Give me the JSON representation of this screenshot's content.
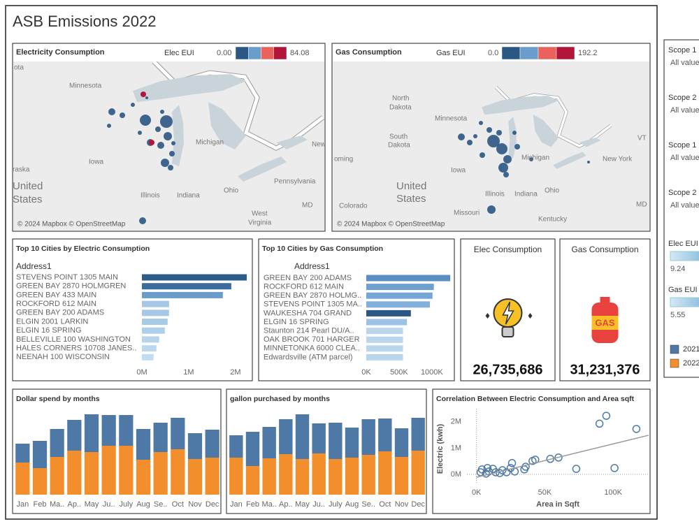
{
  "title": "ASB Emissions 2022",
  "maps": [
    {
      "title": "Electricity Consumption",
      "legend_title": "Elec EUI",
      "legend_min": "0.00",
      "legend_max": "84.08",
      "legend_colors": [
        "#2a5783",
        "#6a9ccc",
        "#e9635c",
        "#b3153a"
      ],
      "labels": [
        "ota",
        "Minnesota",
        "Michigan",
        "Iowa",
        "raska",
        "United",
        "States",
        "Illinois",
        "Indiana",
        "Ohio",
        "Pennsylvania",
        "MD",
        "West",
        "Virginia",
        "New"
      ],
      "attribution": "© 2024 Mapbox © OpenStreetMap"
    },
    {
      "title": "Gas Consumption",
      "legend_title": "Gas EUI",
      "legend_min": "0.0",
      "legend_max": "192.2",
      "legend_colors": [
        "#2a5783",
        "#6a9ccc",
        "#e9635c",
        "#b3153a"
      ],
      "labels": [
        "North",
        "Dakota",
        "Minnesota",
        "South",
        "Dakota",
        "Michigan",
        "New York",
        "Iowa",
        "oming",
        "United",
        "States",
        "Illinois",
        "Indiana",
        "Ohio",
        "Colorado",
        "MD",
        "Missouri",
        "Kentucky",
        "VT"
      ],
      "attribution": "© 2024 Mapbox © OpenStreetMap"
    }
  ],
  "kpis": [
    {
      "title": "Elec Consumption",
      "value": "26,735,686"
    },
    {
      "title": "Gas Consumption",
      "value": "31,231,376",
      "icon_text": "GAS"
    }
  ],
  "filters": [
    {
      "label": "Scope 1",
      "value": "All values"
    },
    {
      "label": "Scope 2",
      "value": "All values"
    },
    {
      "label": "Scope 1",
      "value": "All values"
    },
    {
      "label": "Scope 2",
      "value": "All values"
    }
  ],
  "sliders": [
    {
      "label": "Elec EUI",
      "value": "9.24"
    },
    {
      "label": "Gas EUI",
      "value": "5.55"
    }
  ],
  "chart_data": [
    {
      "type": "bar",
      "horizontal": true,
      "title": "Top 10 Cities by Electric Consumption",
      "y_label": "Address1",
      "categories": [
        "STEVENS POINT 1305 MAIN",
        "GREEN BAY 2870 HOLMGREN",
        "GREEN BAY 433 MAIN",
        "ROCKFORD 612 MAIN",
        "GREEN BAY 200 ADAMS",
        "ELGIN 2001 LARKIN",
        "ELGIN 16 SPRING",
        "BELLEVILLE 100 WASHINGTON",
        "HALES CORNERS 10708 JANES..",
        "NEENAH 100 WISCONSIN"
      ],
      "values": [
        2240000,
        1910000,
        1730000,
        580000,
        580000,
        550000,
        490000,
        370000,
        310000,
        250000
      ],
      "colors": [
        "#2c5d8a",
        "#3b6c9c",
        "#6b9bc9",
        "#a4c8e6",
        "#a4c8e6",
        "#a8cbe7",
        "#aecfe9",
        "#b6d4ec",
        "#bcd8ee",
        "#c2dcf0"
      ],
      "xlim": [
        0,
        2300000
      ],
      "xticks": [
        {
          "value": 0,
          "label": "0M"
        },
        {
          "value": 1000000,
          "label": "1M"
        },
        {
          "value": 2000000,
          "label": "2M"
        }
      ]
    },
    {
      "type": "bar",
      "horizontal": true,
      "title": "Top 10 Cities by Gas Consumption",
      "y_label": "Address1",
      "categories": [
        "GREEN BAY 200 ADAMS",
        "ROCKFORD 612 MAIN",
        "GREEN BAY 2870 HOLMG..",
        "STEVENS POINT 1305 MA..",
        "WAUKESHA 704 GRAND",
        "ELGIN 16 SPRING",
        "Staunton 214 Pearl DU/A..",
        "OAK BROOK 701 HARGER",
        "MINNETONKA 6000 CLEA..",
        "Edwardsville (ATM parcel)"
      ],
      "values": [
        1280000,
        1030000,
        1010000,
        970000,
        680000,
        620000,
        560000,
        560000,
        560000,
        560000
      ],
      "colors": [
        "#5b8fc4",
        "#6ea0d0",
        "#76a6d4",
        "#82b0da",
        "#2a5783",
        "#9cc2e4",
        "#b9d6ed",
        "#b9d6ed",
        "#b9d6ed",
        "#b9d6ed"
      ],
      "xlim": [
        0,
        1300000
      ],
      "xticks": [
        {
          "value": 0,
          "label": "0K"
        },
        {
          "value": 500000,
          "label": "500K"
        },
        {
          "value": 1000000,
          "label": "1000K"
        }
      ]
    },
    {
      "type": "bar",
      "stacked": true,
      "title": "Dollar spend by months",
      "categories": [
        "Jan",
        "Feb",
        "Ma..",
        "Ap..",
        "May",
        "Ju..",
        "July",
        "Aug",
        "Se..",
        "Oct",
        "Nov",
        "Dec"
      ],
      "series": [
        {
          "name": "2022",
          "color": "#f28e2b",
          "values": [
            46,
            38,
            54,
            63,
            61,
            70,
            70,
            50,
            61,
            65,
            51,
            53
          ]
        },
        {
          "name": "2021",
          "color": "#4e79a7",
          "values": [
            27,
            39,
            40,
            44,
            54,
            44,
            44,
            44,
            42,
            45,
            37,
            40
          ]
        }
      ]
    },
    {
      "type": "bar",
      "stacked": true,
      "title": "gallon purchased by months",
      "categories": [
        "Jan",
        "Feb",
        "Ma..",
        "Ap..",
        "May",
        "Ju..",
        "July",
        "Aug",
        "Se..",
        "Oct",
        "Nov",
        "Dec"
      ],
      "series": [
        {
          "name": "2022",
          "color": "#f28e2b",
          "values": [
            53,
            41,
            52,
            58,
            51,
            59,
            51,
            53,
            57,
            62,
            54,
            63
          ]
        },
        {
          "name": "2021",
          "color": "#4e79a7",
          "values": [
            32,
            49,
            45,
            50,
            64,
            43,
            52,
            43,
            51,
            47,
            41,
            47
          ]
        }
      ]
    },
    {
      "type": "scatter",
      "title": "Correlation Between Electric Consumption and Area sqft",
      "x_label": "Area in Sqft",
      "y_label": "Electric (kwh)",
      "color": "#4e79a7",
      "x": [
        90000,
        95000,
        117000,
        101000,
        73000,
        60000,
        54000,
        43000,
        41000,
        36000,
        26000,
        28000,
        35000,
        4000,
        9000,
        14000,
        19000,
        7000,
        12000,
        17000,
        22000,
        3000,
        8000,
        25000
      ],
      "values": [
        1930000,
        2230000,
        1730000,
        240000,
        210000,
        640000,
        590000,
        560000,
        510000,
        290000,
        430000,
        110000,
        190000,
        190000,
        110000,
        80000,
        160000,
        30000,
        210000,
        50000,
        80000,
        80000,
        240000,
        240000
      ],
      "trendline": {
        "color": "#999999",
        "x": [
          0,
          126000
        ],
        "values": [
          -110000,
          1490000
        ]
      },
      "xlim": [
        -7000,
        126000
      ],
      "ylim": [
        -560000,
        2500000
      ],
      "xticks": [
        {
          "value": 0,
          "label": "0K"
        },
        {
          "value": 50000,
          "label": "50K"
        },
        {
          "value": 100000,
          "label": "100K"
        }
      ],
      "yticks": [
        {
          "value": 0,
          "label": "0M"
        },
        {
          "value": 1000000,
          "label": "1M"
        },
        {
          "value": 2000000,
          "label": "2M"
        }
      ]
    }
  ]
}
